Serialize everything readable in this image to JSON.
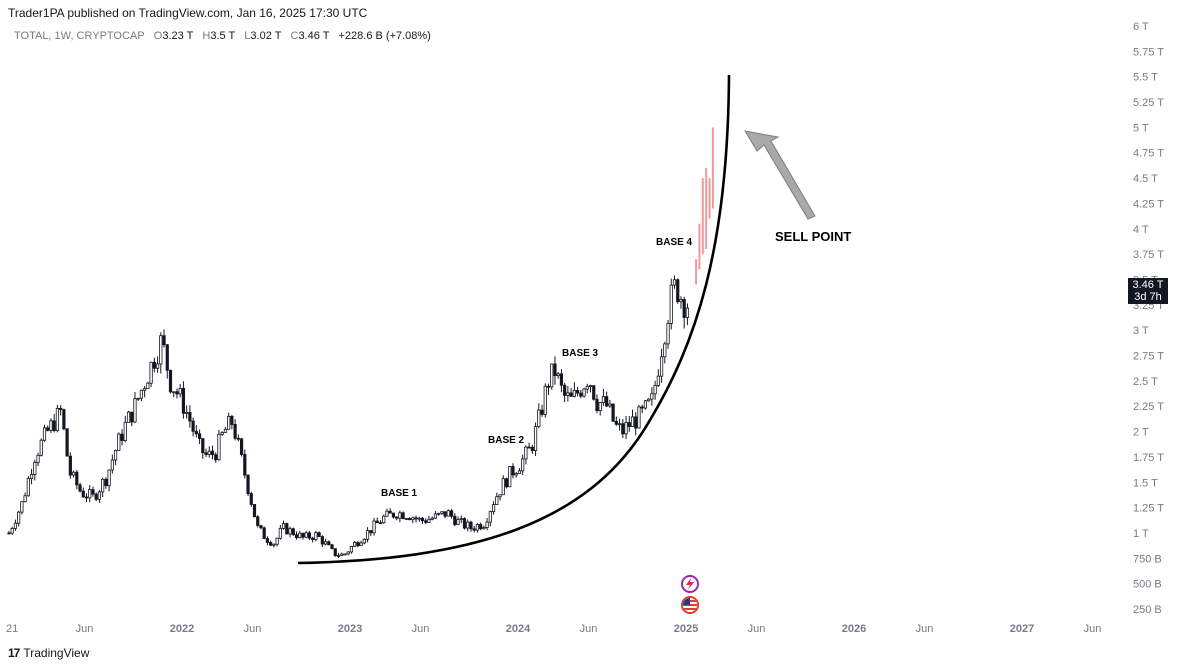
{
  "header": {
    "published": "Trader1PA published on TradingView.com, Jan 16, 2025 17:30 UTC"
  },
  "symbol_bar": {
    "symbol": "TOTAL, 1W, CRYPTOCAP",
    "open_label": "O",
    "open": "3.23 T",
    "high_label": "H",
    "high": "3.5 T",
    "low_label": "L",
    "low": "3.02 T",
    "close_label": "C",
    "close": "3.46 T",
    "change": "+228.6 B (+7.08%)"
  },
  "price_tag": {
    "price": "3.46 T",
    "countdown": "3d 7h"
  },
  "footer": {
    "brand": "TradingView"
  },
  "colors": {
    "candle": "#131722",
    "projected": "#ef9a9a",
    "curve": "#000000",
    "arrow": "#a9a9a9"
  },
  "chart_data": {
    "type": "candlestick",
    "y_axis": {
      "labels": [
        "6 T",
        "5.75 T",
        "5.5 T",
        "5.25 T",
        "5 T",
        "4.75 T",
        "4.5 T",
        "4.25 T",
        "4 T",
        "3.75 T",
        "3.5 T",
        "3.25 T",
        "3 T",
        "2.75 T",
        "2.5 T",
        "2.25 T",
        "2 T",
        "1.75 T",
        "1.5 T",
        "1.25 T",
        "1 T",
        "750 B",
        "500 B",
        "250 B"
      ],
      "values": [
        6,
        5.75,
        5.5,
        5.25,
        5,
        4.75,
        4.5,
        4.25,
        4,
        3.75,
        3.5,
        3.25,
        3,
        2.75,
        2.5,
        2.25,
        2,
        1.75,
        1.5,
        1.25,
        1,
        0.75,
        0.5,
        0.25
      ]
    },
    "x_axis": {
      "labels": [
        "21",
        "Jun",
        "2022",
        "Jun",
        "2023",
        "Jun",
        "2024",
        "Jun",
        "2025",
        "Jun",
        "2026",
        "Jun",
        "2027",
        "Jun"
      ],
      "years": [
        2021.0,
        2021.42,
        2022.0,
        2022.42,
        2023.0,
        2023.42,
        2024.0,
        2024.42,
        2025.0,
        2025.42,
        2026.0,
        2026.42,
        2027.0,
        2027.42
      ],
      "bold": [
        false,
        false,
        true,
        false,
        true,
        false,
        true,
        false,
        true,
        false,
        true,
        false,
        true,
        false
      ]
    },
    "price_path": [
      [
        2020.97,
        1.0
      ],
      [
        2021.05,
        1.3
      ],
      [
        2021.12,
        1.75
      ],
      [
        2021.2,
        2.0
      ],
      [
        2021.28,
        2.2
      ],
      [
        2021.33,
        1.6
      ],
      [
        2021.4,
        1.4
      ],
      [
        2021.47,
        1.35
      ],
      [
        2021.55,
        1.55
      ],
      [
        2021.6,
        1.8
      ],
      [
        2021.66,
        2.05
      ],
      [
        2021.72,
        2.25
      ],
      [
        2021.78,
        2.5
      ],
      [
        2021.84,
        2.75
      ],
      [
        2021.88,
        2.9
      ],
      [
        2021.93,
        2.5
      ],
      [
        2022.0,
        2.3
      ],
      [
        2022.05,
        2.1
      ],
      [
        2022.1,
        1.85
      ],
      [
        2022.15,
        1.75
      ],
      [
        2022.2,
        1.8
      ],
      [
        2022.25,
        2.0
      ],
      [
        2022.3,
        2.1
      ],
      [
        2022.35,
        1.75
      ],
      [
        2022.4,
        1.4
      ],
      [
        2022.45,
        1.05
      ],
      [
        2022.5,
        0.95
      ],
      [
        2022.55,
        0.9
      ],
      [
        2022.6,
        1.05
      ],
      [
        2022.67,
        1.0
      ],
      [
        2022.72,
        0.95
      ],
      [
        2022.8,
        0.98
      ],
      [
        2022.85,
        0.9
      ],
      [
        2022.9,
        0.8
      ],
      [
        2022.96,
        0.78
      ],
      [
        2023.02,
        0.88
      ],
      [
        2023.1,
        1.0
      ],
      [
        2023.2,
        1.15
      ],
      [
        2023.28,
        1.2
      ],
      [
        2023.35,
        1.18
      ],
      [
        2023.42,
        1.12
      ],
      [
        2023.5,
        1.15
      ],
      [
        2023.58,
        1.2
      ],
      [
        2023.65,
        1.1
      ],
      [
        2023.72,
        1.05
      ],
      [
        2023.8,
        1.1
      ],
      [
        2023.85,
        1.3
      ],
      [
        2023.9,
        1.45
      ],
      [
        2023.96,
        1.6
      ],
      [
        2024.02,
        1.7
      ],
      [
        2024.08,
        1.85
      ],
      [
        2024.13,
        2.15
      ],
      [
        2024.18,
        2.5
      ],
      [
        2024.22,
        2.6
      ],
      [
        2024.27,
        2.35
      ],
      [
        2024.32,
        2.3
      ],
      [
        2024.38,
        2.45
      ],
      [
        2024.42,
        2.55
      ],
      [
        2024.47,
        2.3
      ],
      [
        2024.53,
        2.25
      ],
      [
        2024.58,
        2.05
      ],
      [
        2024.62,
        2.0
      ],
      [
        2024.68,
        2.1
      ],
      [
        2024.73,
        2.15
      ],
      [
        2024.8,
        2.3
      ],
      [
        2024.85,
        2.8
      ],
      [
        2024.9,
        3.25
      ],
      [
        2024.94,
        3.45
      ],
      [
        2024.98,
        3.3
      ],
      [
        2025.02,
        3.25
      ]
    ],
    "projected_bars": [
      {
        "x": 2025.06,
        "low": 3.45,
        "high": 3.7
      },
      {
        "x": 2025.08,
        "low": 3.6,
        "high": 4.05
      },
      {
        "x": 2025.1,
        "low": 3.75,
        "high": 4.5
      },
      {
        "x": 2025.12,
        "low": 3.8,
        "high": 4.6
      },
      {
        "x": 2025.14,
        "low": 4.1,
        "high": 4.5
      },
      {
        "x": 2025.16,
        "low": 4.2,
        "high": 5.0
      }
    ],
    "annotations": [
      "BASE 1",
      "BASE 2",
      "BASE 3",
      "BASE 4",
      "SELL POINT"
    ],
    "grid": false,
    "last_price": 3.46
  }
}
